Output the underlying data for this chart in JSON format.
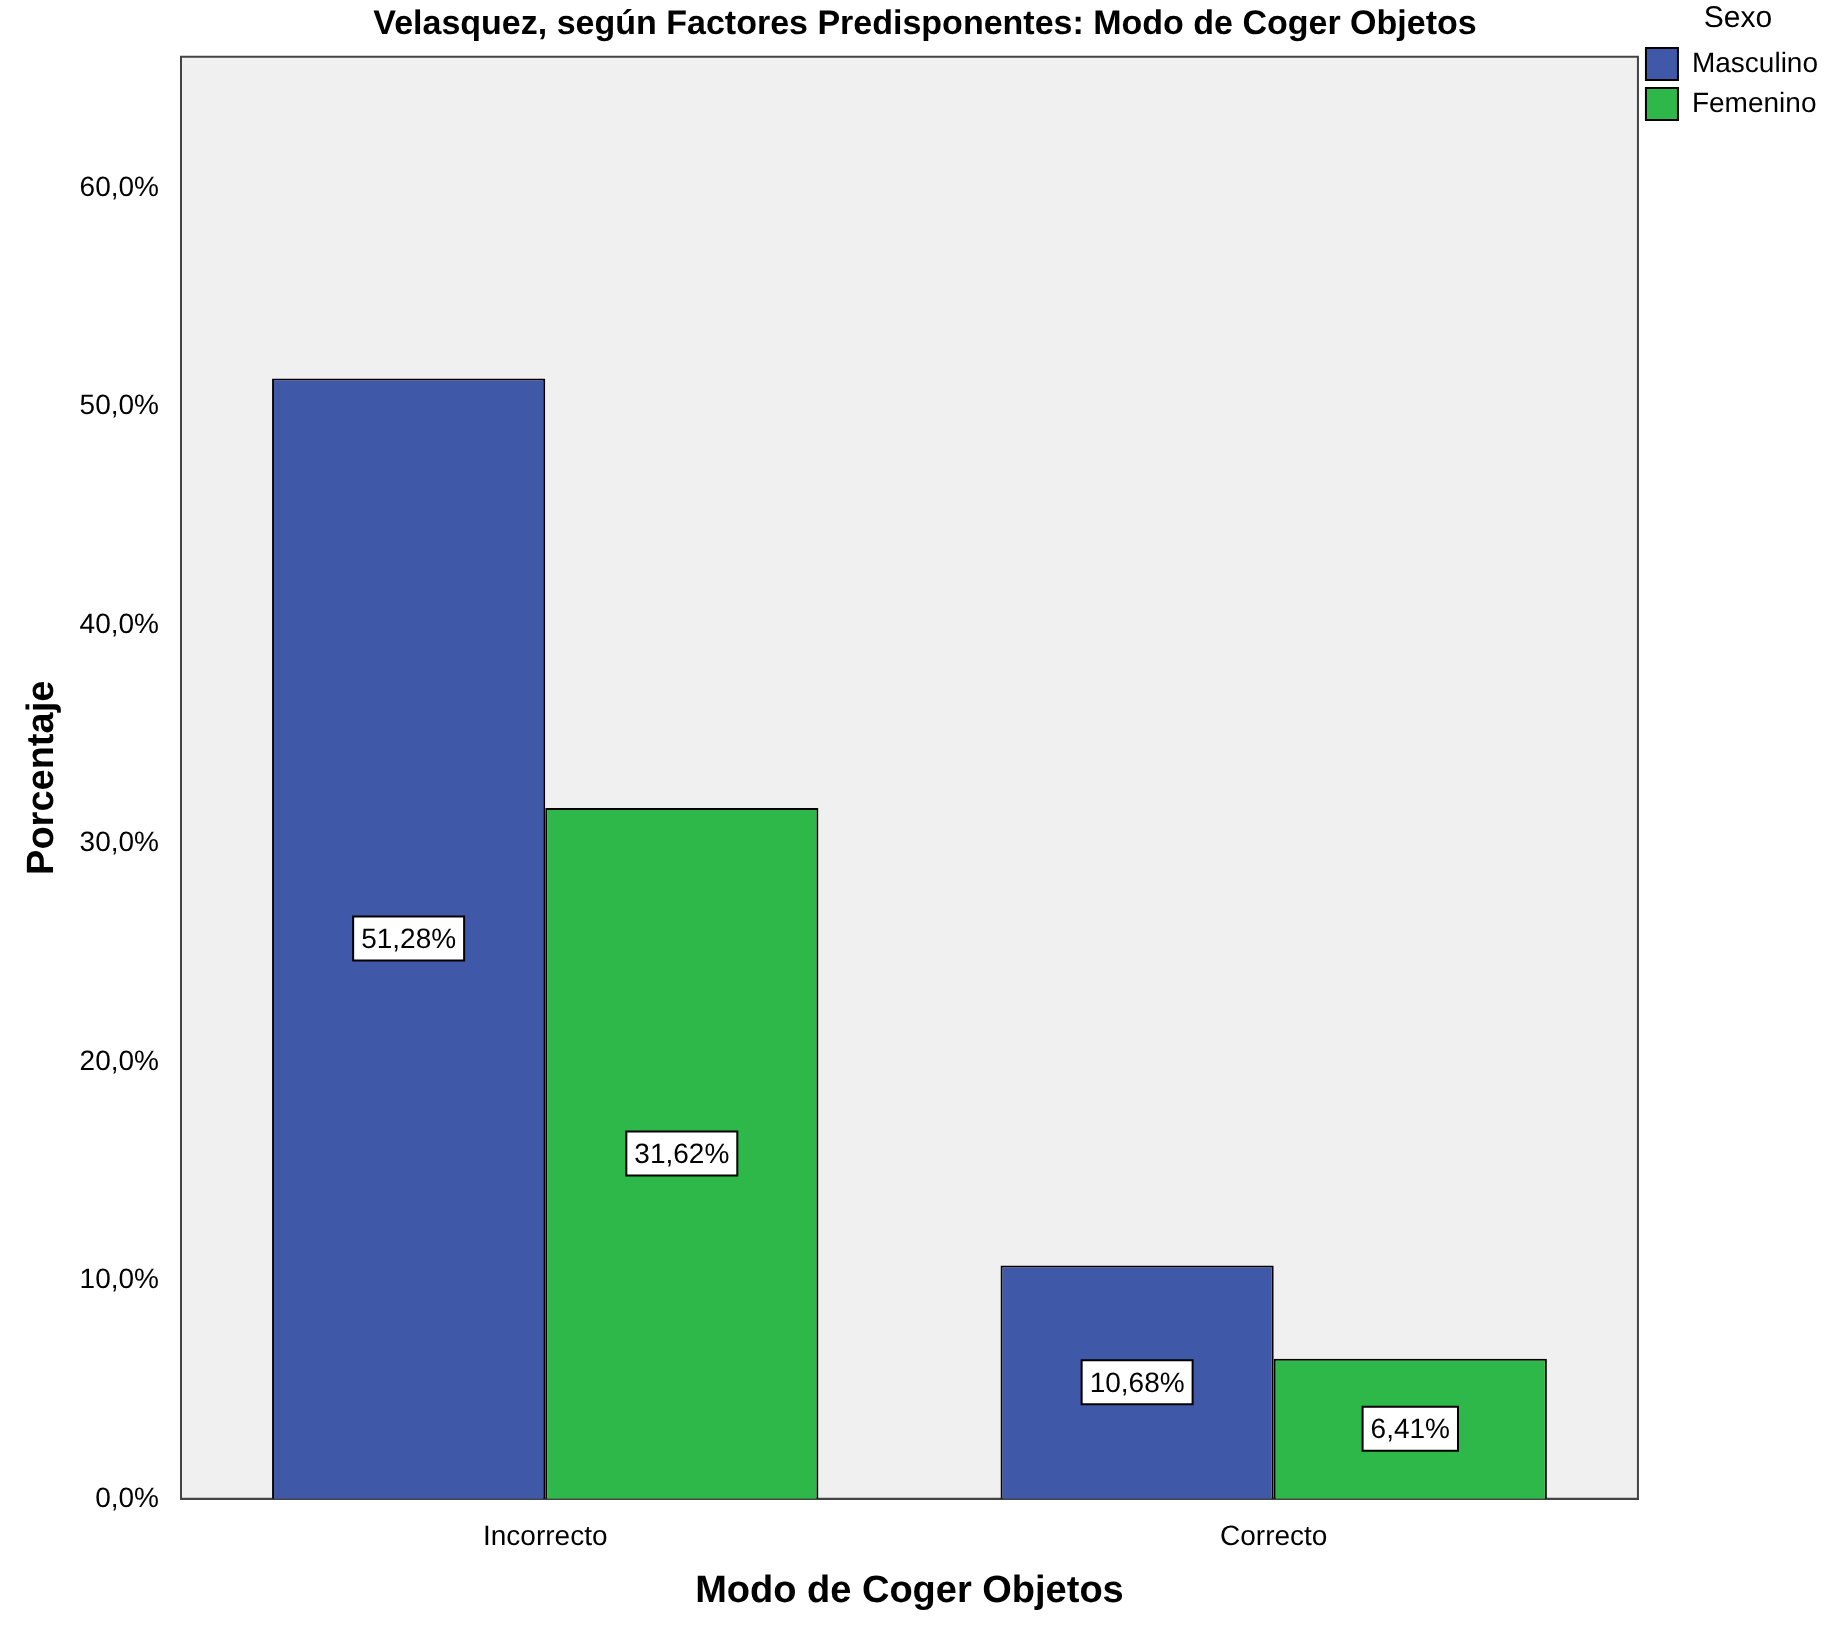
{
  "chart_data": {
    "type": "bar",
    "title": "Velasquez, según Factores Predisponentes: Modo de Coger Objetos",
    "xlabel": "Modo de Coger Objetos",
    "ylabel": "Porcentaje",
    "legend_title": "Sexo",
    "categories": [
      "Incorrecto",
      "Correcto"
    ],
    "series": [
      {
        "name": "Masculino",
        "color": "#3f58a8",
        "values": [
          51.28,
          10.68
        ],
        "value_labels": [
          "51,28%",
          "10,68%"
        ]
      },
      {
        "name": "Femenino",
        "color": "#2fb84a",
        "values": [
          31.62,
          6.41
        ],
        "value_labels": [
          "31,62%",
          "6,41%"
        ]
      }
    ],
    "ylim": [
      0,
      66
    ],
    "yticks": [
      {
        "value": 0,
        "label": "0,0%"
      },
      {
        "value": 10,
        "label": "10,0%"
      },
      {
        "value": 20,
        "label": "20,0%"
      },
      {
        "value": 30,
        "label": "30,0%"
      },
      {
        "value": 40,
        "label": "40,0%"
      },
      {
        "value": 50,
        "label": "50,0%"
      },
      {
        "value": 60,
        "label": "60,0%"
      }
    ],
    "grid": false,
    "legend": "top right"
  }
}
